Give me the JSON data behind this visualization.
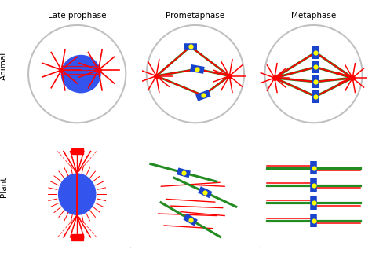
{
  "title_col1": "Late prophase",
  "title_col2": "Prometaphase",
  "title_col3": "Metaphase",
  "label_row1": "Animal",
  "label_row2": "Plant",
  "bg_color": "#ffffff",
  "cell_outline_color": "#c0c0c0",
  "nucleus_color": "#3355ee",
  "centrosome_color": "#ff0000",
  "spindle_color_green": "#228B22",
  "chromosome_color_blue": "#1a44cc",
  "kinetochore_color": "#ffff00"
}
